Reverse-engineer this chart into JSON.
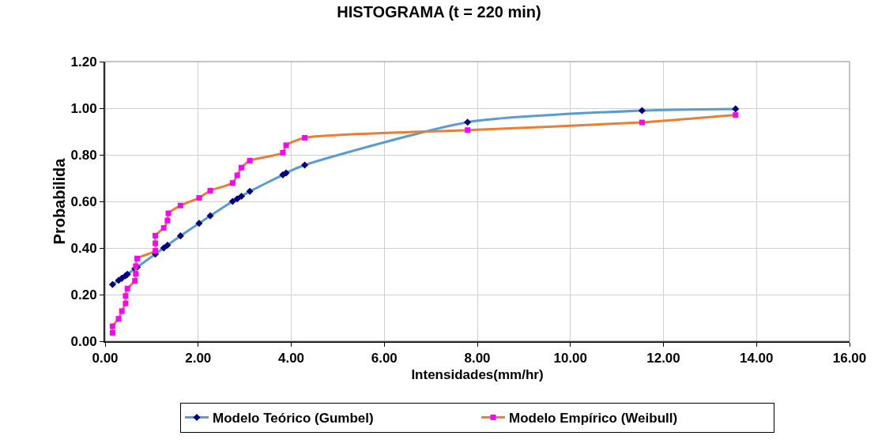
{
  "chart_data": {
    "type": "line",
    "title": "HISTOGRAMA (t = 220 min)",
    "xlabel": "Intensidades(mm/hr)",
    "ylabel": "Probabilida",
    "xlim": [
      0,
      16
    ],
    "xticks": [
      {
        "value": 0,
        "label": "0.00"
      },
      {
        "value": 2,
        "label": "2.00"
      },
      {
        "value": 4,
        "label": "4.00"
      },
      {
        "value": 6,
        "label": "6.00"
      },
      {
        "value": 8,
        "label": "8.00"
      },
      {
        "value": 10,
        "label": "10.00"
      },
      {
        "value": 12,
        "label": "12.00"
      },
      {
        "value": 14,
        "label": "14.00"
      },
      {
        "value": 16,
        "label": "16.00"
      }
    ],
    "ylim": [
      0,
      1.2
    ],
    "yticks": [
      {
        "value": 0,
        "label": "0.00"
      },
      {
        "value": 0.2,
        "label": "0.20"
      },
      {
        "value": 0.4,
        "label": "0.40"
      },
      {
        "value": 0.6,
        "label": "0.60"
      },
      {
        "value": 0.8,
        "label": "0.80"
      },
      {
        "value": 1,
        "label": "1.00"
      },
      {
        "value": 1.2,
        "label": "1.20"
      }
    ],
    "grid": true,
    "legend": "bottom",
    "line_style": "solid",
    "series": [
      {
        "name": "Modelo Teórico (Gumbel)",
        "color": "#5b9bd5",
        "marker": "diamond",
        "x": [
          0.16,
          0.29,
          0.36,
          0.44,
          0.48,
          0.64,
          0.69,
          1.08,
          1.26,
          1.34,
          1.62,
          2.02,
          2.26,
          2.74,
          2.84,
          2.93,
          3.11,
          3.82,
          3.89,
          4.29,
          7.79,
          11.54,
          13.55
        ],
        "values": [
          0.243,
          0.261,
          0.27,
          0.281,
          0.287,
          0.311,
          0.318,
          0.374,
          0.4,
          0.412,
          0.452,
          0.506,
          0.538,
          0.6,
          0.611,
          0.622,
          0.643,
          0.714,
          0.722,
          0.756,
          0.94,
          0.99,
          0.997
        ]
      },
      {
        "name": "Modelo Empírico (Weibull)",
        "color": "#ed7d31",
        "marker": "square",
        "x": [
          0.16,
          0.16,
          0.29,
          0.36,
          0.44,
          0.44,
          0.48,
          0.64,
          0.66,
          0.66,
          0.69,
          1.08,
          1.08,
          1.08,
          1.26,
          1.34,
          1.36,
          1.62,
          2.02,
          2.26,
          2.74,
          2.84,
          2.93,
          3.11,
          3.82,
          3.89,
          4.29,
          7.79,
          11.54,
          13.55
        ],
        "values": [
          0.036,
          0.064,
          0.096,
          0.129,
          0.162,
          0.194,
          0.226,
          0.259,
          0.289,
          0.322,
          0.355,
          0.388,
          0.42,
          0.453,
          0.486,
          0.518,
          0.549,
          0.582,
          0.615,
          0.646,
          0.679,
          0.712,
          0.745,
          0.775,
          0.809,
          0.841,
          0.873,
          0.906,
          0.939,
          0.971
        ]
      }
    ]
  }
}
